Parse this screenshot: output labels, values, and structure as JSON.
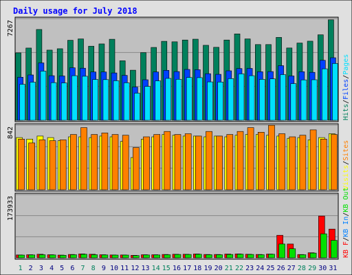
{
  "colors": {
    "background": "#e0e0e0",
    "panel": "#c0c0c0",
    "hits": "#00805c",
    "files": "#0040ff",
    "pages": "#00e0ff",
    "visits": "#ffff00",
    "sites": "#ff8000",
    "kbin": "#0080ff",
    "kbout": "#00e000",
    "kbf": "#ff0000",
    "title": "#0000ff",
    "weekend": "#00805c",
    "weekday": "#000080"
  },
  "chart_data": {
    "type": "bar",
    "title": "Daily usage for July 2018",
    "categories": [
      "1",
      "2",
      "3",
      "4",
      "5",
      "6",
      "7",
      "8",
      "9",
      "10",
      "11",
      "12",
      "13",
      "14",
      "15",
      "16",
      "17",
      "18",
      "19",
      "20",
      "21",
      "22",
      "23",
      "24",
      "25",
      "26",
      "27",
      "28",
      "29",
      "30",
      "31"
    ],
    "weekend_days": [
      1,
      7,
      8,
      14,
      15,
      21,
      22,
      28,
      29
    ],
    "panels": [
      {
        "id": "hits",
        "scale_label": "7267",
        "ymax": 8100,
        "legend": [
          {
            "text": "Hits",
            "color": "#00805c"
          },
          {
            "text": "/",
            "color": "#000000"
          },
          {
            "text": "Files",
            "color": "#0040ff"
          },
          {
            "text": "/",
            "color": "#000000"
          },
          {
            "text": "Pages",
            "color": "#00e0ff"
          }
        ],
        "series": [
          {
            "name": "Hits",
            "color": "#00805c",
            "values": [
              5370,
              5750,
              7230,
              5590,
              5700,
              6370,
              6480,
              5900,
              6080,
              6450,
              4740,
              3990,
              5390,
              5800,
              6290,
              6250,
              6390,
              6460,
              5970,
              5810,
              6390,
              6880,
              6480,
              6030,
              6030,
              6600,
              5760,
              6150,
              6300,
              6810,
              8000
            ]
          },
          {
            "name": "Files",
            "color": "#0040ff",
            "values": [
              3430,
              3610,
              4570,
              3550,
              3530,
              4180,
              4150,
              3850,
              3850,
              3770,
              3580,
              2650,
              3230,
              3850,
              3980,
              3880,
              4050,
              4030,
              3710,
              3660,
              3940,
              4120,
              4130,
              3870,
              3880,
              4350,
              3530,
              3870,
              3820,
              4780,
              4980
            ]
          },
          {
            "name": "Pages",
            "color": "#00e0ff",
            "values": [
              2870,
              3040,
              3920,
              3000,
              2980,
              3550,
              3510,
              3250,
              3240,
              3150,
              2990,
              2160,
              2700,
              3140,
              3340,
              3270,
              3410,
              3400,
              3060,
              3050,
              3320,
              3700,
              3550,
              3260,
              3300,
              3640,
              2920,
              3220,
              3230,
              4100,
              4520
            ]
          }
        ]
      },
      {
        "id": "visits",
        "scale_label": "842",
        "ymax": 842,
        "legend": [
          {
            "text": "Visits",
            "color": "#ffff00"
          },
          {
            "text": "/",
            "color": "#000000"
          },
          {
            "text": "Sites",
            "color": "#ff8000"
          }
        ],
        "series": [
          {
            "name": "Visits",
            "color": "#ffff00",
            "values": [
              680,
              660,
              700,
              680,
              640,
              690,
              690,
              680,
              700,
              690,
              630,
              420,
              660,
              690,
              720,
              710,
              700,
              700,
              690,
              700,
              690,
              710,
              720,
              720,
              710,
              700,
              670,
              680,
              650,
              680,
              730
            ]
          },
          {
            "name": "Sites",
            "color": "#ff8000",
            "values": [
              660,
              610,
              650,
              640,
              650,
              720,
              810,
              720,
              740,
              720,
              710,
              550,
              690,
              720,
              760,
              720,
              730,
              700,
              760,
              700,
              720,
              760,
              810,
              750,
              840,
              730,
              690,
              710,
              780,
              660,
              720
            ]
          }
        ]
      },
      {
        "id": "kbytes",
        "scale_label": "173933",
        "ymax": 173933,
        "legend": [
          {
            "text": "KB F",
            "color": "#ff0000"
          },
          {
            "text": "/",
            "color": "#000000"
          },
          {
            "text": "KB In",
            "color": "#0080ff"
          },
          {
            "text": "/",
            "color": "#000000"
          },
          {
            "text": "KB Out",
            "color": "#00e000"
          }
        ],
        "series": [
          {
            "name": "KB F",
            "color": "#ff0000",
            "values": [
              8000,
              8600,
              9800,
              8600,
              7500,
              9300,
              10800,
              9800,
              8600,
              8000,
              8000,
              6800,
              8600,
              8600,
              9300,
              9800,
              9800,
              10500,
              9300,
              9300,
              10400,
              10800,
              9800,
              9300,
              10400,
              62000,
              38000,
              9000,
              14000,
              115000,
              79000
            ]
          },
          {
            "name": "KB Out",
            "color": "#00e000",
            "values": [
              7500,
              8000,
              8600,
              8000,
              7000,
              8600,
              9800,
              8600,
              8000,
              7500,
              7500,
              6200,
              8000,
              8000,
              8600,
              9300,
              9300,
              9800,
              8600,
              8600,
              9300,
              10000,
              9300,
              8600,
              9800,
              38000,
              25000,
              8600,
              13000,
              66000,
              48000
            ]
          }
        ]
      }
    ]
  }
}
